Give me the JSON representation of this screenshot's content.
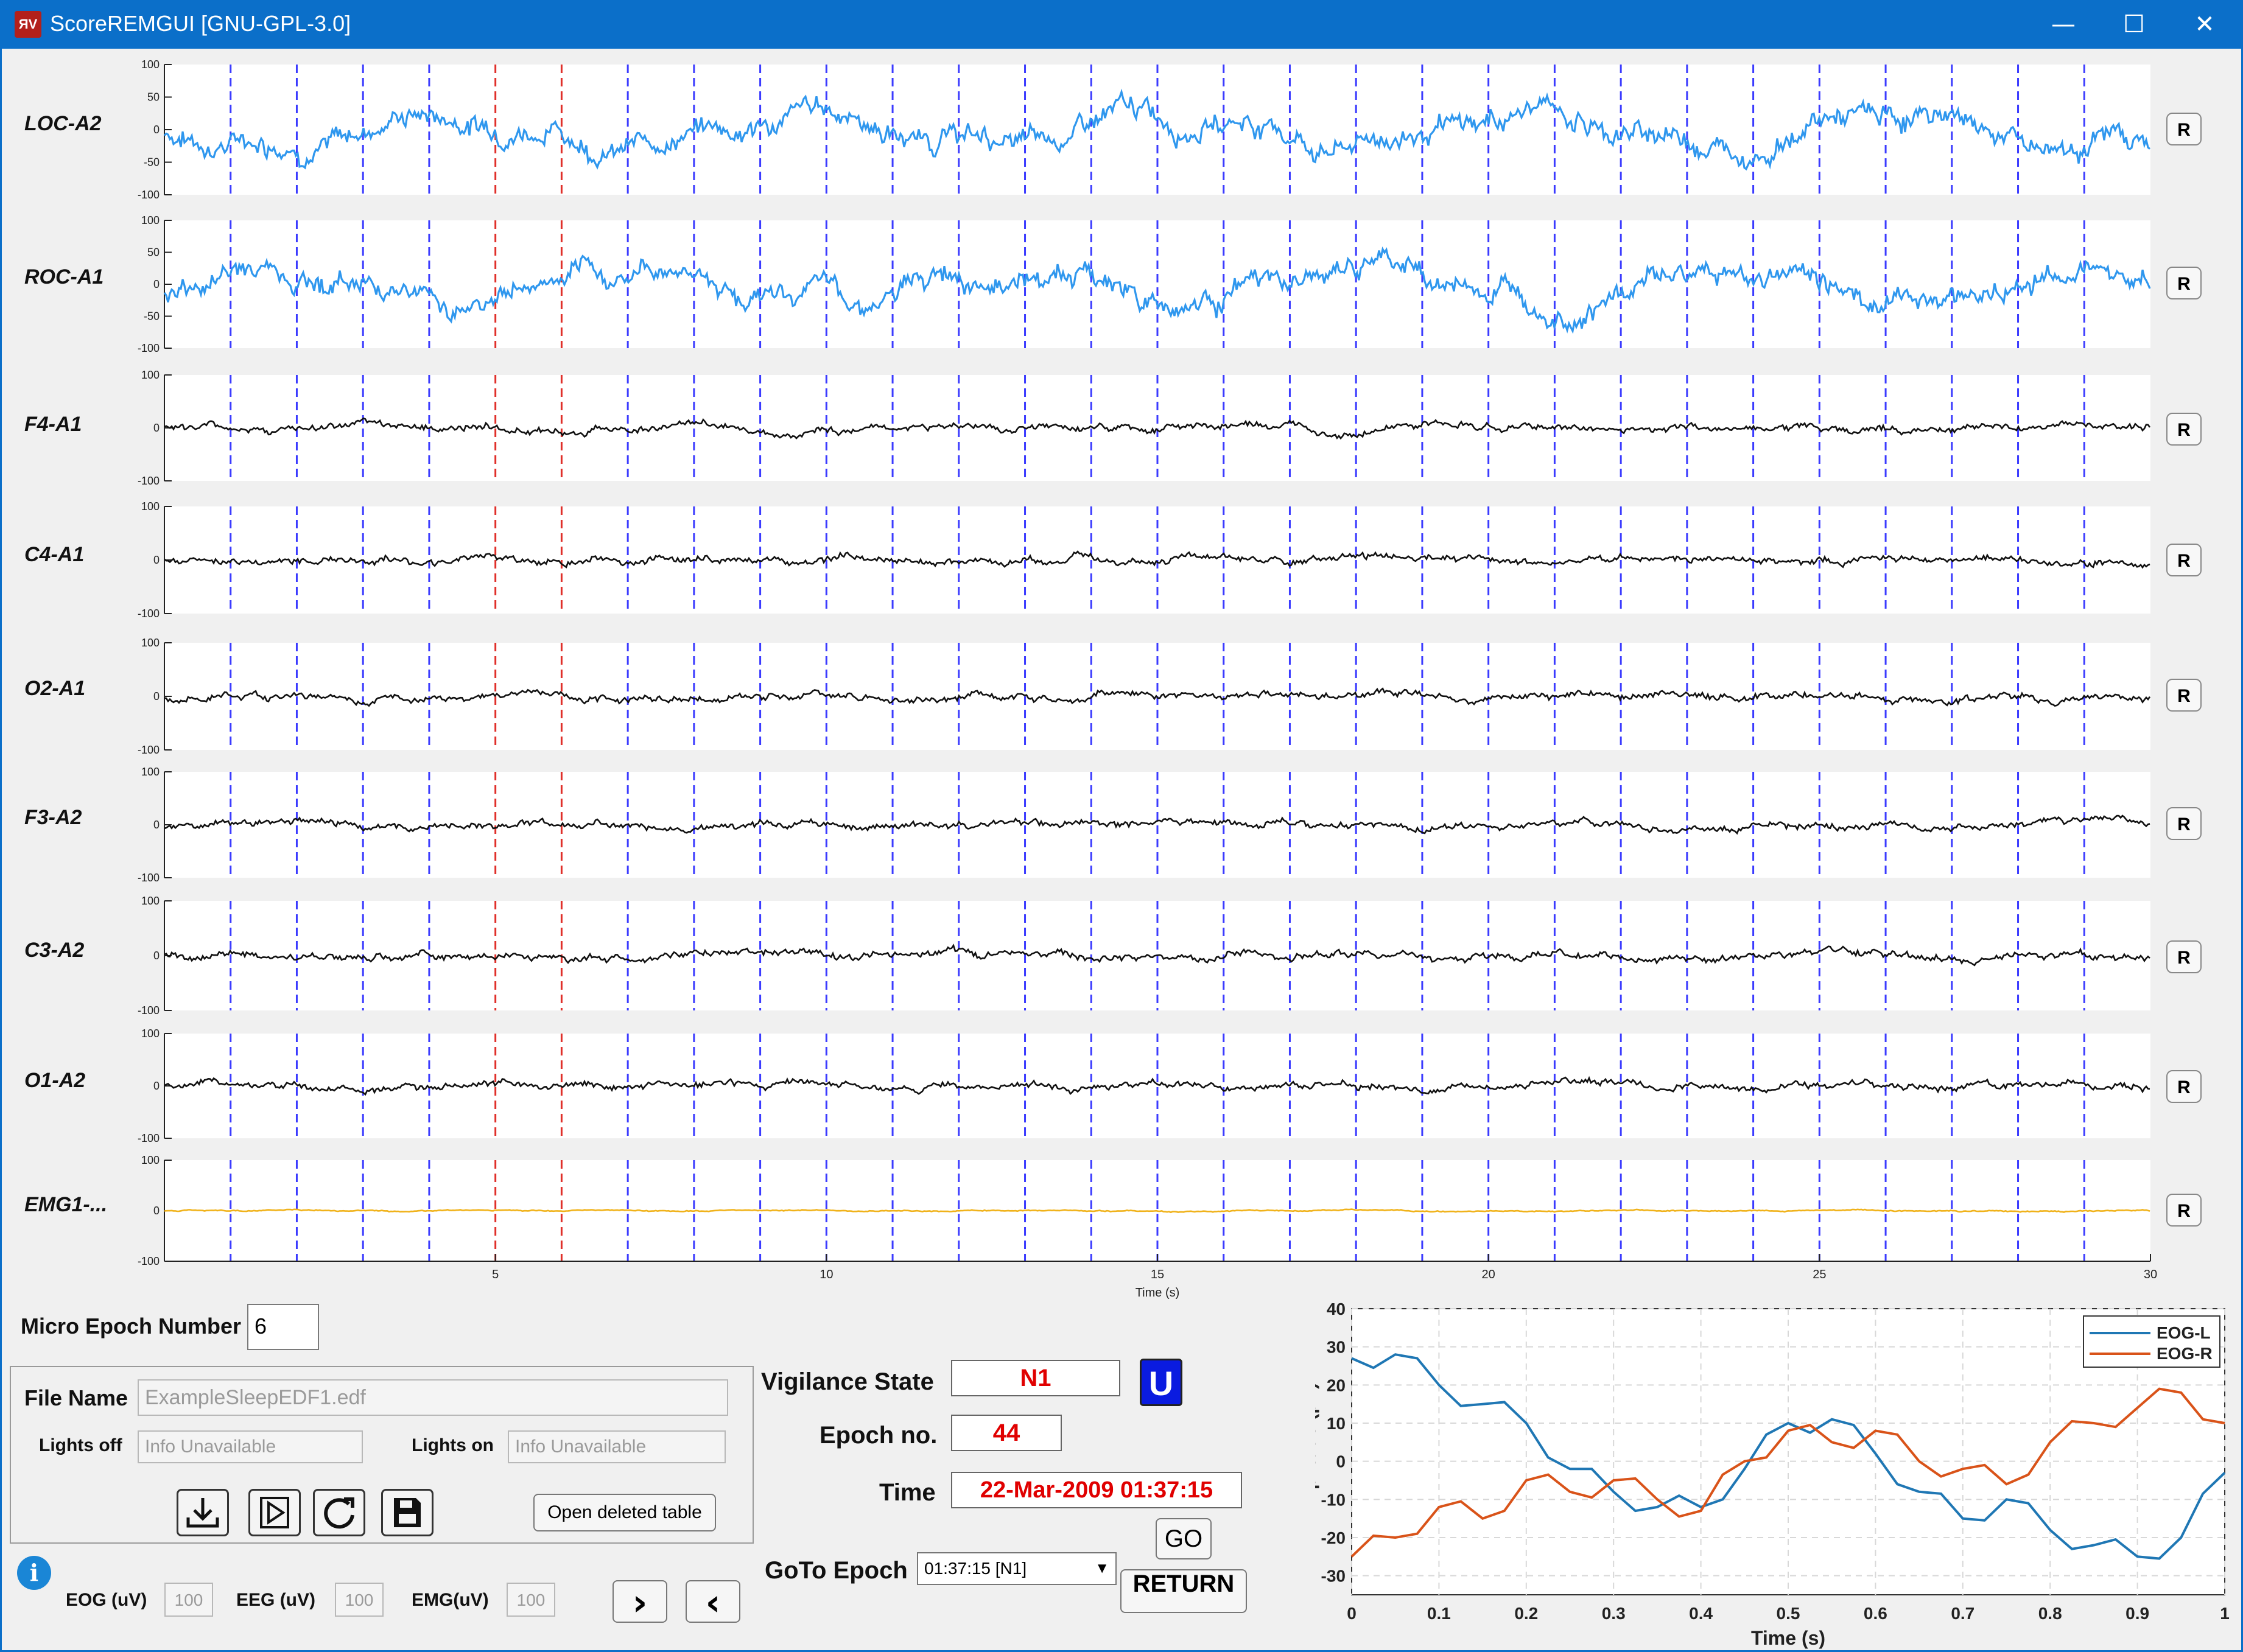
{
  "window": {
    "title": "ScoreREMGUI [GNU-GPL-3.0]",
    "controls": {
      "minimize": "—",
      "maximize": "☐",
      "close": "✕"
    }
  },
  "traces": {
    "channels": [
      {
        "label": "LOC-A2",
        "color": "#2f97ee",
        "yticks": [
          "100",
          "50",
          "0",
          "-50",
          "-100"
        ]
      },
      {
        "label": "ROC-A1",
        "color": "#2f97ee",
        "yticks": [
          "100",
          "50",
          "0",
          "-50",
          "-100"
        ]
      },
      {
        "label": "F4-A1",
        "color": "#111111",
        "yticks": [
          "100",
          "0",
          "-100"
        ]
      },
      {
        "label": "C4-A1",
        "color": "#111111",
        "yticks": [
          "100",
          "0",
          "-100"
        ]
      },
      {
        "label": "O2-A1",
        "color": "#111111",
        "yticks": [
          "100",
          "0",
          "-100"
        ]
      },
      {
        "label": "F3-A2",
        "color": "#111111",
        "yticks": [
          "100",
          "0",
          "-100"
        ]
      },
      {
        "label": "C3-A2",
        "color": "#111111",
        "yticks": [
          "100",
          "0",
          "-100"
        ]
      },
      {
        "label": "O1-A2",
        "color": "#111111",
        "yticks": [
          "100",
          "0",
          "-100"
        ]
      },
      {
        "label": "EMG1-...",
        "color": "#f0b21a",
        "yticks": [
          "100",
          "0",
          "-100"
        ]
      }
    ],
    "x_ticks": [
      "5",
      "10",
      "15",
      "20",
      "25",
      "30"
    ],
    "x_axis_label": "Time (s)",
    "x_range": [
      0,
      30
    ],
    "epoch_marker_color": "#3b3bff",
    "highlight_marker_color": "#e0302a",
    "highlight_markers_s": [
      5,
      6
    ],
    "reset_label": "R"
  },
  "controls": {
    "micro_epoch_label": "Micro Epoch Number",
    "micro_epoch_value": "6",
    "file_name_label": "File Name",
    "file_name_value": "ExampleSleepEDF1.edf",
    "lights_off_label": "Lights off",
    "lights_off_value": "Info Unavailable",
    "lights_on_label": "Lights on",
    "lights_on_value": "Info Unavailable",
    "open_deleted_label": "Open deleted table",
    "info_icon": "i",
    "eog_label": "EOG (uV)",
    "eog_value": "100",
    "eeg_label": "EEG (uV)",
    "eeg_value": "100",
    "emg_label": "EMG(uV)",
    "emg_value": "100",
    "next_label": "›",
    "prev_label": "‹"
  },
  "state": {
    "vigilance_label": "Vigilance State",
    "vigilance_value": "N1",
    "u_label": "U",
    "epoch_label": "Epoch no.",
    "epoch_value": "44",
    "time_label": "Time",
    "time_value": "22-Mar-2009 01:37:15",
    "goto_label": "GoTo Epoch",
    "goto_selected": "01:37:15 [N1]",
    "go_label": "GO",
    "return_label": "RETURN"
  },
  "chart_data": {
    "type": "line",
    "title": "",
    "xlabel": "Time (s)",
    "ylabel": "Amplitude  (μV)",
    "xlim": [
      0,
      1
    ],
    "ylim": [
      -35,
      40
    ],
    "x_ticks": [
      "0",
      "0.1",
      "0.2",
      "0.3",
      "0.4",
      "0.5",
      "0.6",
      "0.7",
      "0.8",
      "0.9",
      "1"
    ],
    "y_ticks": [
      "40",
      "30",
      "20",
      "10",
      "0",
      "-10",
      "-20",
      "-30"
    ],
    "grid": true,
    "legend": "top-right",
    "x": [
      0,
      0.05,
      0.1,
      0.15,
      0.2,
      0.25,
      0.3,
      0.35,
      0.4,
      0.45,
      0.5,
      0.55,
      0.6,
      0.65,
      0.7,
      0.75,
      0.8,
      0.85,
      0.9,
      0.95,
      1.0
    ],
    "series": [
      {
        "name": "EOG-L",
        "color": "#1f77b4",
        "values": [
          27,
          28,
          20,
          15,
          10,
          -2,
          -8,
          -12,
          -12,
          -2,
          10,
          11,
          2,
          -8,
          -15,
          -10,
          -18,
          -22,
          -25,
          -20,
          -3
        ]
      },
      {
        "name": "EOG-R",
        "color": "#d95319",
        "values": [
          -25,
          -20,
          -12,
          -15,
          -5,
          -8,
          -5,
          -10,
          -13,
          0,
          8,
          5,
          8,
          0,
          -2,
          -6,
          5,
          10,
          14,
          18,
          10
        ]
      }
    ]
  }
}
